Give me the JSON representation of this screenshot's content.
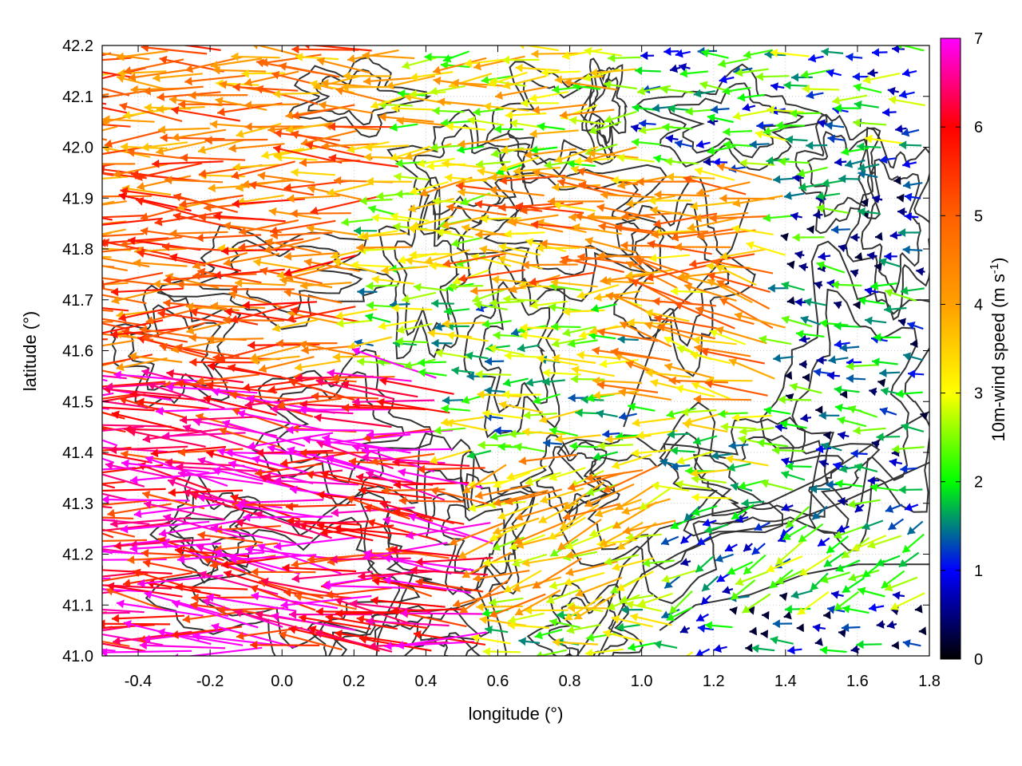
{
  "chart_data": {
    "type": "vector-field",
    "xlabel": "longitude (°)",
    "ylabel": "latitude (°)",
    "xlim": [
      -0.5,
      1.8
    ],
    "ylim": [
      41.0,
      42.2
    ],
    "x_ticks": [
      "-0.4",
      "-0.2",
      "0.0",
      "0.2",
      "0.4",
      "0.6",
      "0.8",
      "1.0",
      "1.2",
      "1.4",
      "1.6",
      "1.8"
    ],
    "y_ticks": [
      "41.0",
      "41.1",
      "41.2",
      "41.3",
      "41.4",
      "41.5",
      "41.6",
      "41.7",
      "41.8",
      "41.9",
      "42.0",
      "42.1",
      "42.2"
    ],
    "grid": true,
    "colorbar": {
      "label_main": "10m-wind speed (m s",
      "label_sup": "-1",
      "label_close": ")",
      "range": [
        0,
        7
      ],
      "ticks": [
        "0",
        "1",
        "2",
        "3",
        "4",
        "5",
        "6",
        "7"
      ],
      "colors": [
        "#000000",
        "#0000ff",
        "#00ff00",
        "#ffff00",
        "#ff8000",
        "#ff0000",
        "#ff00ff"
      ]
    },
    "contour_color": "#333333",
    "wind_regions": [
      {
        "x": [
          -0.5,
          0.35
        ],
        "y": [
          41.9,
          42.2
        ],
        "speed": 4.5,
        "dir_deg": 180
      },
      {
        "x": [
          -0.5,
          0.25
        ],
        "y": [
          41.55,
          41.9
        ],
        "speed": 4.8,
        "dir_deg": 180
      },
      {
        "x": [
          -0.5,
          0.6
        ],
        "y": [
          41.0,
          41.55
        ],
        "speed": 6.2,
        "dir_deg": 175
      },
      {
        "x": [
          0.35,
          1.0
        ],
        "y": [
          41.7,
          42.2
        ],
        "speed": 3.2,
        "dir_deg": 185
      },
      {
        "x": [
          0.6,
          1.4
        ],
        "y": [
          41.75,
          41.95
        ],
        "speed": 4.3,
        "dir_deg": 178
      },
      {
        "x": [
          0.5,
          1.3
        ],
        "y": [
          41.4,
          41.7
        ],
        "speed": 2.4,
        "dir_deg": 182
      },
      {
        "x": [
          0.6,
          1.1
        ],
        "y": [
          41.1,
          41.4
        ],
        "speed": 3.6,
        "dir_deg": 200
      },
      {
        "x": [
          1.0,
          1.5
        ],
        "y": [
          41.5,
          41.75
        ],
        "speed": 4.0,
        "dir_deg": 165
      },
      {
        "x": [
          1.0,
          1.8
        ],
        "y": [
          41.95,
          42.2
        ],
        "speed": 1.8,
        "dir_deg": 180
      },
      {
        "x": [
          1.4,
          1.8
        ],
        "y": [
          41.3,
          41.95
        ],
        "speed": 1.3,
        "dir_deg": 175
      },
      {
        "x": [
          1.1,
          1.8
        ],
        "y": [
          41.0,
          41.3
        ],
        "speed": 1.8,
        "dir_deg": 210
      },
      {
        "x": [
          1.2,
          1.8
        ],
        "y": [
          41.0,
          41.12
        ],
        "speed": 0.9,
        "dir_deg": 180
      }
    ]
  }
}
